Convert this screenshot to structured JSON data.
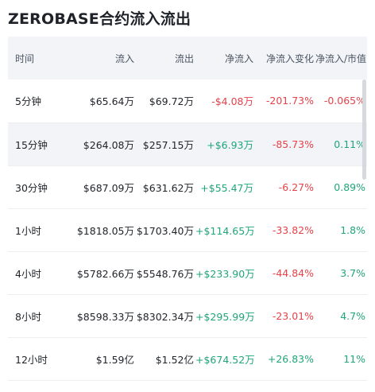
{
  "title": "ZEROBASE合约流入流出",
  "columns": [
    "时间",
    "流入",
    "流出",
    "净流入",
    "净流入变化",
    "净流入/市值"
  ],
  "rows": [
    {
      "time": "5分钟",
      "inflow": "$65.64万",
      "outflow": "$69.72万",
      "net": "-$4.08万",
      "change": "-201.73%",
      "ratio": "-0.065%",
      "net_dir": "neg",
      "change_dir": "neg",
      "ratio_dir": "neg"
    },
    {
      "time": "15分钟",
      "inflow": "$264.08万",
      "outflow": "$257.15万",
      "net": "+$6.93万",
      "change": "-85.73%",
      "ratio": "0.11%",
      "net_dir": "pos",
      "change_dir": "neg",
      "ratio_dir": "pos"
    },
    {
      "time": "30分钟",
      "inflow": "$687.09万",
      "outflow": "$631.62万",
      "net": "+$55.47万",
      "change": "-6.27%",
      "ratio": "0.89%",
      "net_dir": "pos",
      "change_dir": "neg",
      "ratio_dir": "pos"
    },
    {
      "time": "1小时",
      "inflow": "$1818.05万",
      "outflow": "$1703.40万",
      "net": "+$114.65万",
      "change": "-33.82%",
      "ratio": "1.8%",
      "net_dir": "pos",
      "change_dir": "neg",
      "ratio_dir": "pos"
    },
    {
      "time": "4小时",
      "inflow": "$5782.66万",
      "outflow": "$5548.76万",
      "net": "+$233.90万",
      "change": "-44.84%",
      "ratio": "3.7%",
      "net_dir": "pos",
      "change_dir": "neg",
      "ratio_dir": "pos"
    },
    {
      "time": "8小时",
      "inflow": "$8598.33万",
      "outflow": "$8302.34万",
      "net": "+$295.99万",
      "change": "-23.01%",
      "ratio": "4.7%",
      "net_dir": "pos",
      "change_dir": "neg",
      "ratio_dir": "pos"
    },
    {
      "time": "12小时",
      "inflow": "$1.59亿",
      "outflow": "$1.52亿",
      "net": "+$674.52万",
      "change": "+26.83%",
      "ratio": "11%",
      "net_dir": "pos",
      "change_dir": "pos",
      "ratio_dir": "pos"
    }
  ],
  "highlighted_row": 1,
  "colors": {
    "negative": "#e5424a",
    "positive": "#1fa67a",
    "header_bg": "#f2f4f7"
  }
}
